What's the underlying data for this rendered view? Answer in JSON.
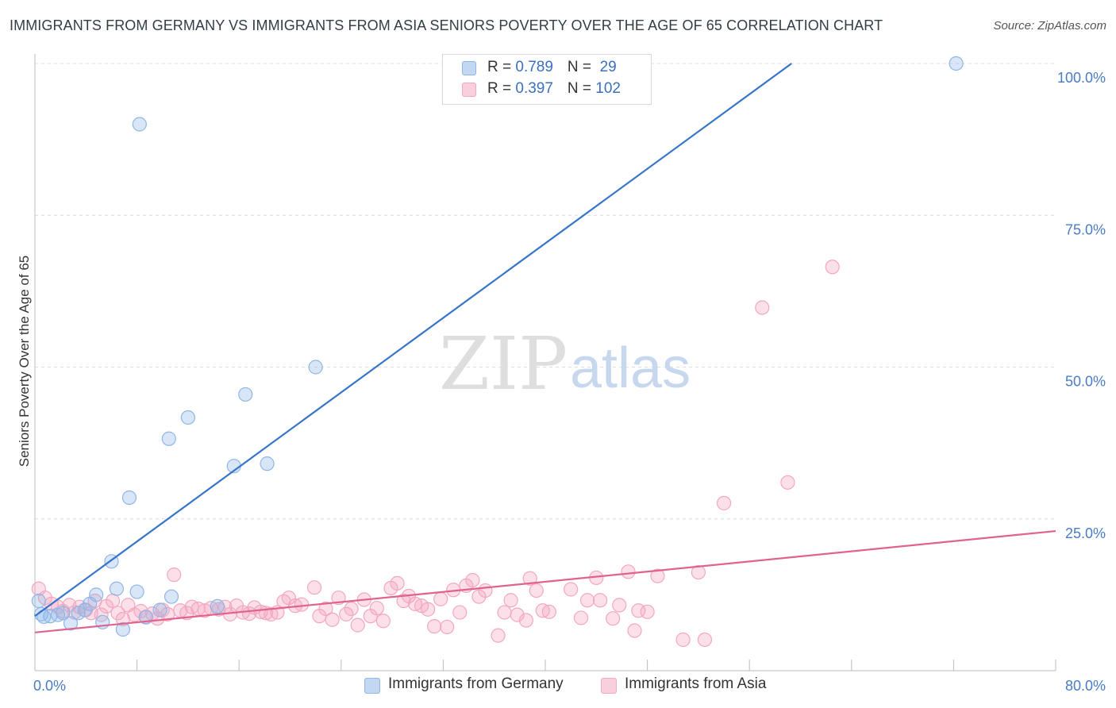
{
  "title": "IMMIGRANTS FROM GERMANY VS IMMIGRANTS FROM ASIA SENIORS POVERTY OVER THE AGE OF 65 CORRELATION CHART",
  "source": "Source: ZipAtlas.com",
  "watermark": {
    "zip": "ZIP",
    "atlas": "atlas"
  },
  "colors": {
    "germany": "#8fb6e8",
    "germany_line": "#3574c9",
    "asia": "#f3a7c0",
    "asia_line": "#e0628e",
    "tick": "#4a7cc4",
    "grid": "#dcdcdc"
  },
  "legend": {
    "rows": [
      {
        "r_label": "R = ",
        "r_value": "0.789",
        "n_label": "N = ",
        "n_value": " 29"
      },
      {
        "r_label": "R = ",
        "r_value": "0.397",
        "n_label": "N = ",
        "n_value": "102"
      }
    ]
  },
  "chart_data": {
    "type": "scatter",
    "title": "IMMIGRANTS FROM GERMANY VS IMMIGRANTS FROM ASIA SENIORS POVERTY OVER THE AGE OF 65 CORRELATION CHART",
    "xlabel": "",
    "ylabel": "Seniors Poverty Over the Age of 65",
    "xlim": [
      0,
      80
    ],
    "ylim": [
      0,
      100
    ],
    "x_tick_labels": [
      "0.0%",
      "80.0%"
    ],
    "y_ticks": [
      25,
      50,
      75,
      100
    ],
    "y_tick_labels": [
      "25.0%",
      "50.0%",
      "75.0%",
      "100.0%"
    ],
    "grid": "horizontal dashed",
    "legend_position": "top-center",
    "series": [
      {
        "name": "Immigrants from Germany",
        "r": 0.789,
        "n": 29,
        "trendline": [
          [
            0,
            9.0
          ],
          [
            59.3,
            100
          ]
        ],
        "points": [
          [
            0.3,
            11.5
          ],
          [
            0.5,
            9.3
          ],
          [
            0.7,
            8.9
          ],
          [
            1.2,
            9.0
          ],
          [
            1.8,
            9.2
          ],
          [
            2.2,
            9.5
          ],
          [
            2.8,
            7.8
          ],
          [
            3.4,
            9.5
          ],
          [
            3.9,
            10.0
          ],
          [
            4.3,
            11.0
          ],
          [
            4.8,
            12.5
          ],
          [
            5.3,
            8.0
          ],
          [
            6.0,
            18.0
          ],
          [
            6.4,
            13.5
          ],
          [
            6.9,
            6.8
          ],
          [
            7.4,
            28.5
          ],
          [
            8.0,
            13.0
          ],
          [
            8.2,
            90.0
          ],
          [
            8.7,
            8.8
          ],
          [
            9.8,
            10.0
          ],
          [
            10.5,
            38.2
          ],
          [
            10.7,
            12.2
          ],
          [
            12.0,
            41.7
          ],
          [
            14.3,
            10.6
          ],
          [
            15.6,
            33.7
          ],
          [
            16.5,
            45.5
          ],
          [
            18.2,
            34.1
          ],
          [
            22.0,
            50.0
          ],
          [
            72.2,
            100.0
          ]
        ]
      },
      {
        "name": "Immigrants from Asia",
        "r": 0.397,
        "n": 102,
        "trendline": [
          [
            0,
            6.3
          ],
          [
            80,
            23.0
          ]
        ],
        "points": [
          [
            0.3,
            13.5
          ],
          [
            0.8,
            12.0
          ],
          [
            1.3,
            11.0
          ],
          [
            1.8,
            10.5
          ],
          [
            2.2,
            9.8
          ],
          [
            2.7,
            10.8
          ],
          [
            3.1,
            9.6
          ],
          [
            3.5,
            10.5
          ],
          [
            4.0,
            10.0
          ],
          [
            4.4,
            9.5
          ],
          [
            4.7,
            11.5
          ],
          [
            5.2,
            9.2
          ],
          [
            5.6,
            10.6
          ],
          [
            6.1,
            11.5
          ],
          [
            6.5,
            9.5
          ],
          [
            6.9,
            8.5
          ],
          [
            7.3,
            10.8
          ],
          [
            7.8,
            9.2
          ],
          [
            8.3,
            9.8
          ],
          [
            8.7,
            8.9
          ],
          [
            9.2,
            9.4
          ],
          [
            9.6,
            8.6
          ],
          [
            10.0,
            10.0
          ],
          [
            10.4,
            9.3
          ],
          [
            10.9,
            15.8
          ],
          [
            11.4,
            9.9
          ],
          [
            11.9,
            9.5
          ],
          [
            12.3,
            10.5
          ],
          [
            12.8,
            10.2
          ],
          [
            13.3,
            9.9
          ],
          [
            13.8,
            10.3
          ],
          [
            14.4,
            10.1
          ],
          [
            14.9,
            10.5
          ],
          [
            15.3,
            9.3
          ],
          [
            15.8,
            10.7
          ],
          [
            16.3,
            9.6
          ],
          [
            16.8,
            9.4
          ],
          [
            17.2,
            10.4
          ],
          [
            17.7,
            9.7
          ],
          [
            18.1,
            9.5
          ],
          [
            18.5,
            9.3
          ],
          [
            19.0,
            9.6
          ],
          [
            19.5,
            11.4
          ],
          [
            19.9,
            12.0
          ],
          [
            20.4,
            10.7
          ],
          [
            20.9,
            10.9
          ],
          [
            21.9,
            13.7
          ],
          [
            22.3,
            9.0
          ],
          [
            22.8,
            10.2
          ],
          [
            23.3,
            8.4
          ],
          [
            23.8,
            12.0
          ],
          [
            24.4,
            9.3
          ],
          [
            24.8,
            10.2
          ],
          [
            25.3,
            7.5
          ],
          [
            25.8,
            11.7
          ],
          [
            26.3,
            9.0
          ],
          [
            26.8,
            10.3
          ],
          [
            27.3,
            8.2
          ],
          [
            27.9,
            13.6
          ],
          [
            28.4,
            14.4
          ],
          [
            28.9,
            11.5
          ],
          [
            29.3,
            12.3
          ],
          [
            29.8,
            11.0
          ],
          [
            30.3,
            10.7
          ],
          [
            30.8,
            10.1
          ],
          [
            31.3,
            7.3
          ],
          [
            31.8,
            11.8
          ],
          [
            32.3,
            7.2
          ],
          [
            32.8,
            13.3
          ],
          [
            33.3,
            9.6
          ],
          [
            33.8,
            14.0
          ],
          [
            34.3,
            14.9
          ],
          [
            34.8,
            12.2
          ],
          [
            35.3,
            13.2
          ],
          [
            36.3,
            5.8
          ],
          [
            36.8,
            9.6
          ],
          [
            37.3,
            11.6
          ],
          [
            37.8,
            9.2
          ],
          [
            38.5,
            8.3
          ],
          [
            38.8,
            15.2
          ],
          [
            39.3,
            13.2
          ],
          [
            39.8,
            9.9
          ],
          [
            40.3,
            9.7
          ],
          [
            42.0,
            13.4
          ],
          [
            42.8,
            8.7
          ],
          [
            43.3,
            11.6
          ],
          [
            44.0,
            15.3
          ],
          [
            44.3,
            11.6
          ],
          [
            45.3,
            8.6
          ],
          [
            45.8,
            10.8
          ],
          [
            46.5,
            16.3
          ],
          [
            47.0,
            6.6
          ],
          [
            47.3,
            9.9
          ],
          [
            48.0,
            9.7
          ],
          [
            48.8,
            15.6
          ],
          [
            50.8,
            5.1
          ],
          [
            52.0,
            16.2
          ],
          [
            52.5,
            5.1
          ],
          [
            54.0,
            27.6
          ],
          [
            57.0,
            59.8
          ],
          [
            59.0,
            31.0
          ],
          [
            62.5,
            66.5
          ]
        ]
      }
    ]
  },
  "bottom_legend": [
    "Immigrants from Germany",
    "Immigrants from Asia"
  ]
}
